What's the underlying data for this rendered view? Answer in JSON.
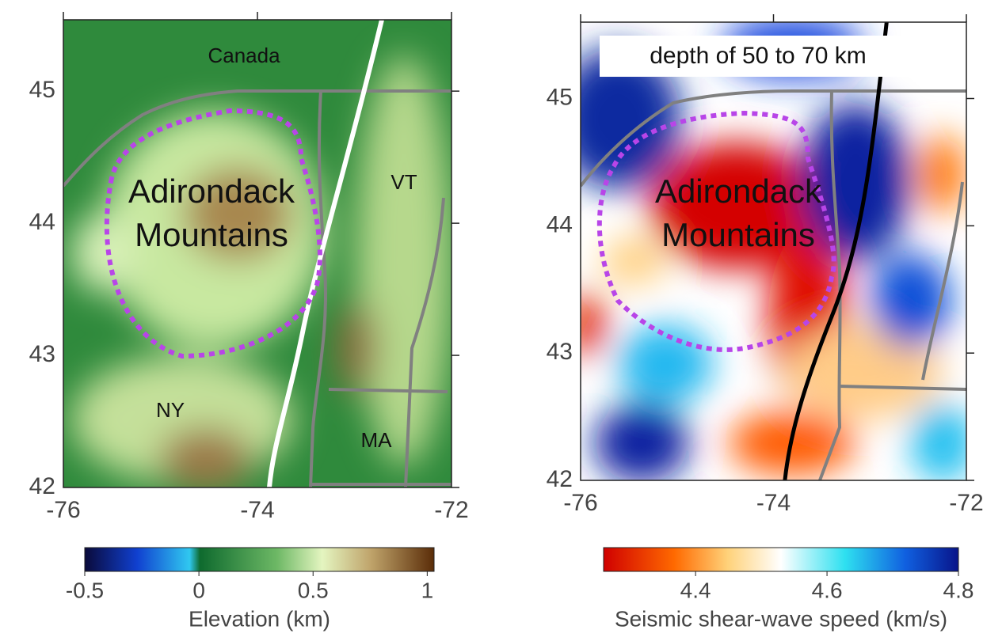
{
  "panels": [
    {
      "labels": {
        "north": "Canada",
        "ny": "NY",
        "vt": "VT",
        "ma": "MA"
      },
      "region": [
        "Adirondack",
        "Mountains"
      ],
      "xlim": [
        -76,
        -72
      ],
      "ylim": [
        42,
        45.54
      ],
      "xticks": [
        -76,
        -74,
        -72
      ],
      "yticks": [
        42,
        43,
        44,
        45
      ],
      "colorbar": {
        "label": "Elevation (km)",
        "clim": [
          -0.5,
          1.03
        ],
        "ticks": [
          -0.5,
          0,
          0.5,
          1
        ]
      }
    },
    {
      "inset": "depth of 50 to 70 km",
      "region": [
        "Adirondack",
        "Mountains"
      ],
      "xlim": [
        -76,
        -72
      ],
      "ylim": [
        42,
        45.6
      ],
      "xticks": [
        -76,
        -74,
        -72
      ],
      "yticks": [
        42,
        43,
        44,
        45
      ],
      "colorbar": {
        "label": "Seismic shear-wave speed (km/s)",
        "clim": [
          4.26,
          4.8
        ],
        "ticks": [
          4.4,
          4.6,
          4.8
        ]
      }
    }
  ]
}
